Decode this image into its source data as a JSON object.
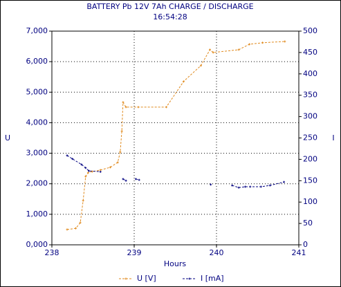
{
  "chart_data": {
    "type": "line",
    "title": "BATTERY Pb 12V 7Ah CHARGE / DISCHARGE",
    "subtitle": "16:54:28",
    "xlabel": "Hours",
    "ylabel": "U",
    "y2label": "I",
    "xlim": [
      238,
      241
    ],
    "xticks": [
      238,
      239,
      240,
      241
    ],
    "ylim": [
      0,
      7000
    ],
    "yticks": [
      {
        "value": 0,
        "label": "0,000"
      },
      {
        "value": 1000,
        "label": "1,000"
      },
      {
        "value": 2000,
        "label": "2,000"
      },
      {
        "value": 3000,
        "label": "3,000"
      },
      {
        "value": 4000,
        "label": "4,000"
      },
      {
        "value": 5000,
        "label": "5,000"
      },
      {
        "value": 6000,
        "label": "6,000"
      },
      {
        "value": 7000,
        "label": "7,000"
      }
    ],
    "y2lim": [
      0,
      500
    ],
    "y2ticks": [
      0,
      50,
      100,
      150,
      200,
      250,
      300,
      350,
      400,
      450,
      500
    ],
    "grid": true,
    "legend": "bottom",
    "series": [
      {
        "name": "U [V]",
        "color": "#e08a1e",
        "x": [
          238.185,
          238.29,
          238.345,
          238.38,
          238.41,
          238.44,
          238.49,
          238.59,
          238.71,
          238.8,
          238.83,
          238.85,
          238.865,
          238.9,
          239.05,
          239.39,
          239.6,
          239.81,
          239.92,
          239.96,
          240.27,
          240.4,
          240.56,
          240.83
        ],
        "values": [
          500,
          540,
          725,
          1450,
          2240,
          2360,
          2400,
          2450,
          2540,
          2700,
          3040,
          3720,
          4670,
          4510,
          4510,
          4510,
          5350,
          5870,
          6390,
          6300,
          6390,
          6570,
          6620,
          6660
        ]
      },
      {
        "name": "I [mA]",
        "color": "#000080",
        "axis": "y2",
        "x": [
          238.185,
          238.25,
          238.36,
          238.41,
          238.45,
          238.59,
          238.7,
          238.865,
          238.9,
          238.95,
          239.02,
          239.06,
          239.5,
          239.93,
          240.1,
          240.19,
          240.27,
          240.35,
          240.41,
          240.54,
          240.65,
          240.82
        ],
        "values": [
          209,
          201,
          188,
          180,
          173,
          171,
          null,
          154,
          150,
          null,
          154,
          152,
          null,
          141,
          null,
          139,
          134,
          136,
          136,
          136,
          139,
          147
        ]
      }
    ]
  }
}
